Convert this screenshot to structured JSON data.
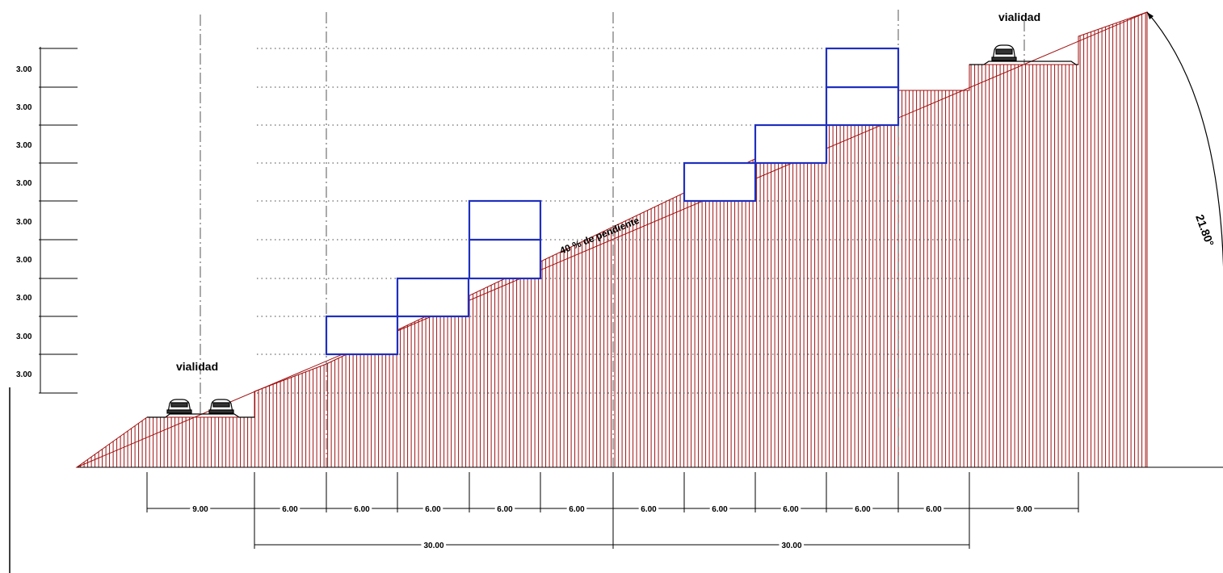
{
  "labels": {
    "road_left": "vialidad",
    "road_right": "vialidad",
    "slope": "40 % de pendiente",
    "angle": "21.80°"
  },
  "vertical_levels": [
    "3.00",
    "3.00",
    "3.00",
    "3.00",
    "3.00",
    "3.00",
    "3.00",
    "3.00",
    "3.00"
  ],
  "horizontal_segments": [
    "9.00",
    "6.00",
    "6.00",
    "6.00",
    "6.00",
    "6.00",
    "6.00",
    "6.00",
    "6.00",
    "6.00",
    "6.00",
    "9.00"
  ],
  "group_spans": [
    "30.00",
    "30.00"
  ],
  "colors": {
    "terrain_hatch": "#a01010",
    "building_outline": "#1f2fbf",
    "lines": "#000000",
    "guide_lines": "#555555"
  }
}
